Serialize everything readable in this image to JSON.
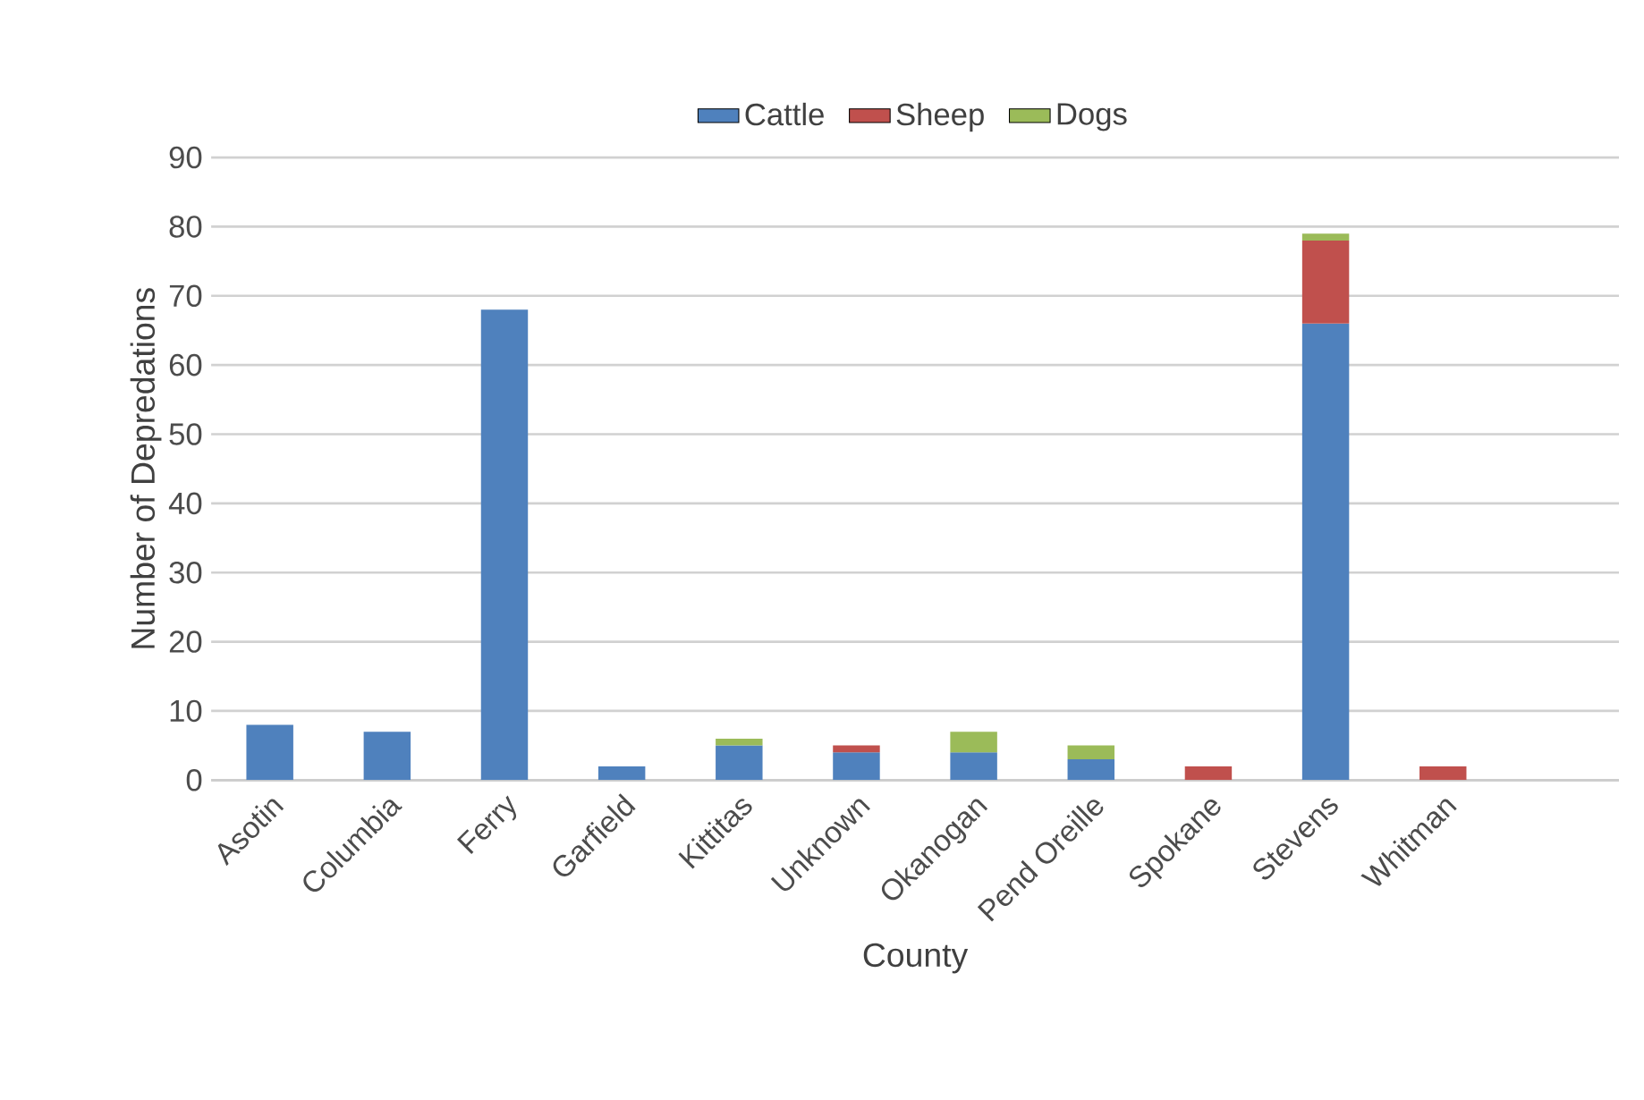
{
  "chart_data": {
    "type": "bar",
    "stacked": true,
    "xlabel": "County",
    "ylabel": "Number of Depredations",
    "categories": [
      "Asotin",
      "Columbia",
      "Ferry",
      "Garfield",
      "Kittitas",
      "Unknown",
      "Okanogan",
      "Pend Oreille",
      "Spokane",
      "Stevens",
      "Whitman",
      null
    ],
    "series": [
      {
        "name": "Cattle",
        "color": "#4f81bd",
        "values": [
          8,
          7,
          68,
          2,
          5,
          4,
          4,
          3,
          null,
          66,
          null,
          null
        ]
      },
      {
        "name": "Sheep",
        "color": "#c0504d",
        "values": [
          null,
          null,
          null,
          null,
          null,
          1,
          null,
          null,
          2,
          12,
          2,
          null
        ]
      },
      {
        "name": "Dogs",
        "color": "#9bbb59",
        "values": [
          null,
          null,
          null,
          null,
          1,
          null,
          3,
          2,
          null,
          1,
          null,
          null
        ]
      }
    ],
    "ylim": [
      0,
      90
    ],
    "yticks": [
      0,
      10,
      20,
      30,
      40,
      50,
      60,
      70,
      80,
      90
    ],
    "grid": "y",
    "legend": "top"
  }
}
